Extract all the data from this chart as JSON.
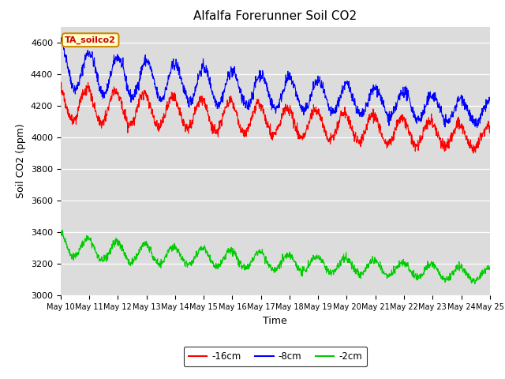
{
  "title": "Alfalfa Forerunner Soil CO2",
  "ylabel": "Soil CO2 (ppm)",
  "xlabel": "Time",
  "annotation": "TA_soilco2",
  "ylim": [
    3000,
    4700
  ],
  "yticks": [
    3000,
    3200,
    3400,
    3600,
    3800,
    4000,
    4200,
    4400,
    4600
  ],
  "xtick_labels": [
    "May 10",
    "May 11",
    "May 12",
    "May 13",
    "May 14",
    "May 15",
    "May 16",
    "May 17",
    "May 18",
    "May 19",
    "May 20",
    "May 21",
    "May 22",
    "May 23",
    "May 24",
    "May 25"
  ],
  "color_16cm": "#FF0000",
  "color_8cm": "#0000FF",
  "color_2cm": "#00CC00",
  "bg_color": "#DCDCDC",
  "legend_labels": [
    "-16cm",
    "-8cm",
    "-2cm"
  ],
  "seed": 42,
  "n_points": 1440
}
